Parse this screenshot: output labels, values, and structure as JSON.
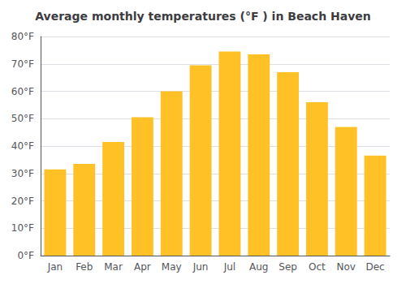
{
  "chart_data": {
    "type": "bar",
    "title": "Average monthly temperatures (°F ) in Beach Haven",
    "categories": [
      "Jan",
      "Feb",
      "Mar",
      "Apr",
      "May",
      "Jun",
      "Jul",
      "Aug",
      "Sep",
      "Oct",
      "Nov",
      "Dec"
    ],
    "values": [
      31.5,
      33.5,
      41.5,
      50.5,
      60.0,
      69.5,
      74.5,
      73.5,
      67.0,
      56.0,
      47.0,
      36.5
    ],
    "color": "#FFC125",
    "ylim": [
      0,
      80
    ],
    "yticks": [
      {
        "value": 0,
        "label": "0°F"
      },
      {
        "value": 10,
        "label": "10°F"
      },
      {
        "value": 20,
        "label": "20°F"
      },
      {
        "value": 30,
        "label": "30°F"
      },
      {
        "value": 40,
        "label": "40°F"
      },
      {
        "value": 50,
        "label": "50°F"
      },
      {
        "value": 60,
        "label": "60°F"
      },
      {
        "value": 70,
        "label": "70°F"
      },
      {
        "value": 80,
        "label": "80°F"
      }
    ],
    "grid": true
  }
}
